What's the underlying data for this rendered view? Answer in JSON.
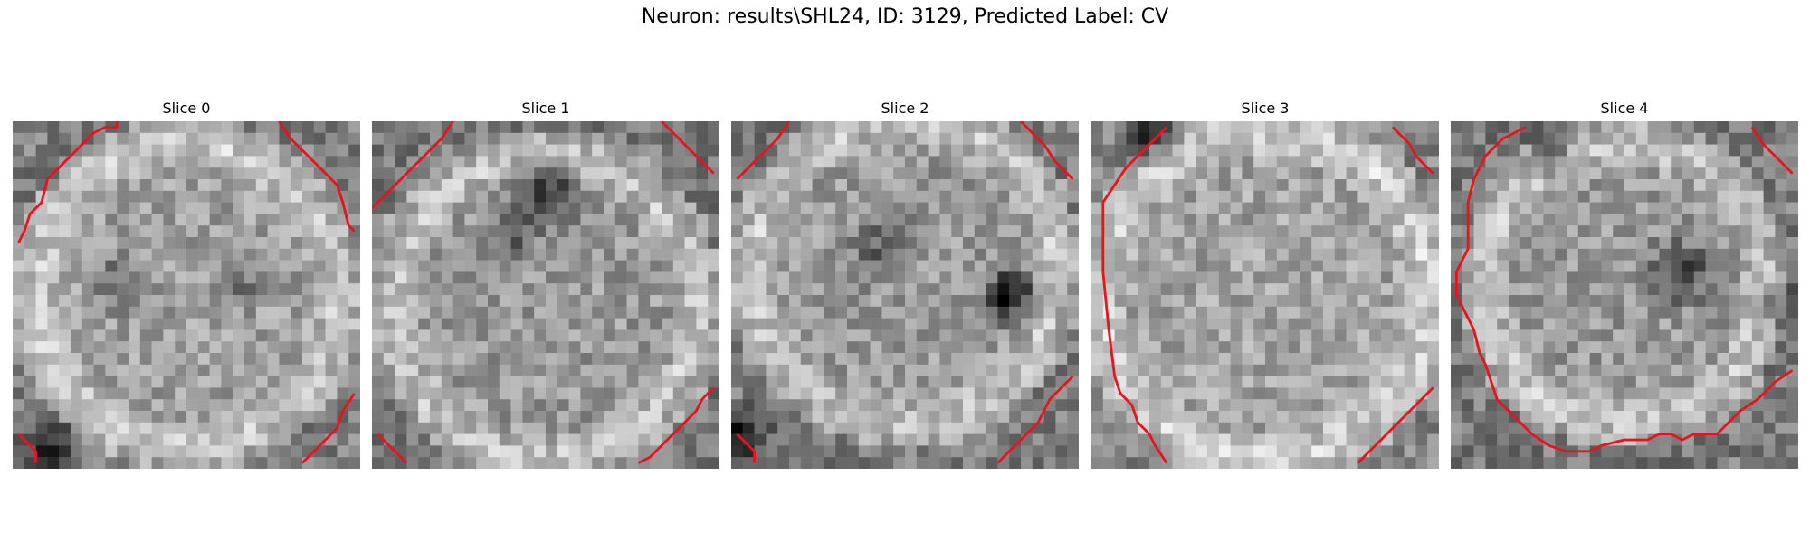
{
  "figure": {
    "title": "Neuron: results\\SHL24, ID: 3129, Predicted Label: CV"
  },
  "slices": [
    {
      "label": "Slice 0"
    },
    {
      "label": "Slice 1"
    },
    {
      "label": "Slice 2"
    },
    {
      "label": "Slice 3"
    },
    {
      "label": "Slice 4"
    }
  ],
  "colors": {
    "contour": "#e8141c",
    "background": "#ffffff"
  },
  "colormap": "gray"
}
